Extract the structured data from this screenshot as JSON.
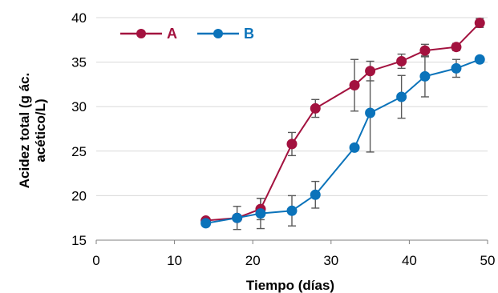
{
  "chart_data": {
    "type": "line",
    "title": "",
    "xlabel": "Tiempo (días)",
    "ylabel_lines": [
      "Acidez total (g ác.",
      "acético/L)"
    ],
    "xlim": [
      0,
      50
    ],
    "ylim": [
      15,
      40
    ],
    "xticks": [
      0,
      10,
      20,
      30,
      40,
      50
    ],
    "yticks": [
      15,
      20,
      25,
      30,
      35,
      40
    ],
    "grid": "horizontal",
    "legend_position": "top-left",
    "series": [
      {
        "name": "A",
        "color": "#A3123F",
        "x": [
          14,
          18,
          21,
          25,
          28,
          33,
          35,
          39,
          42,
          46,
          49
        ],
        "y": [
          17.2,
          17.5,
          18.5,
          25.8,
          29.8,
          32.4,
          34.0,
          35.1,
          36.3,
          36.7,
          39.4
        ],
        "err": [
          0.3,
          0.3,
          1.2,
          1.3,
          1.0,
          2.9,
          1.1,
          0.8,
          0.7,
          0.4,
          0.5
        ]
      },
      {
        "name": "B",
        "color": "#0B73BA",
        "x": [
          14,
          18,
          21,
          25,
          28,
          33,
          35,
          39,
          42,
          46,
          49
        ],
        "y": [
          16.9,
          17.5,
          18.0,
          18.3,
          20.1,
          25.4,
          29.3,
          31.1,
          33.4,
          34.3,
          35.3
        ],
        "err": [
          0.2,
          1.3,
          1.7,
          1.7,
          1.5,
          0.2,
          4.4,
          2.4,
          2.3,
          1.0,
          0.3
        ]
      }
    ]
  }
}
